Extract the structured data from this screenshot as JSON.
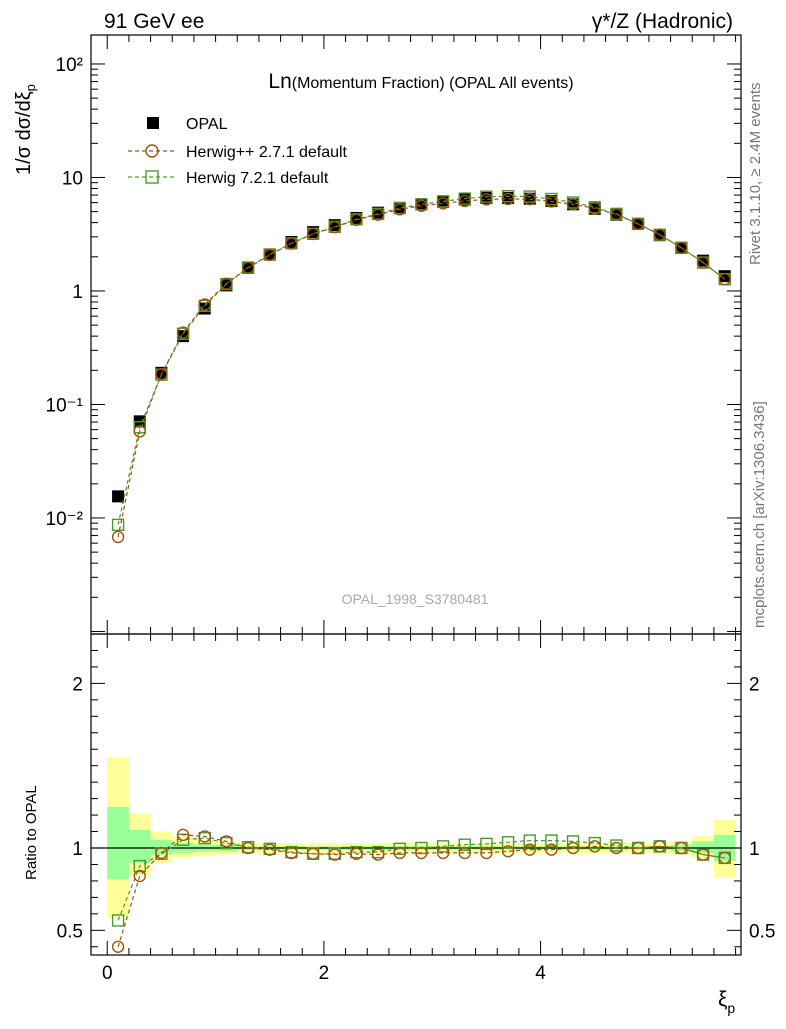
{
  "header": {
    "left": "91 GeV ee",
    "right": "γ*/Z (Hadronic)"
  },
  "side_labels": {
    "rivet": "Rivet 3.1.10, ≥ 2.4M events",
    "mcplots": "mcplots.cern.ch [arXiv:1306.3436]"
  },
  "watermark": "OPAL_1998_S3780481",
  "chart_data": [
    {
      "type": "scatter",
      "title_main": "Ln",
      "title_rest": "(Momentum Fraction) (OPAL All events)",
      "ylabel": "1/σ dσ/dξp",
      "xlabel": "ξp",
      "yscale": "log",
      "ylim": [
        0.00095,
        180
      ],
      "xlim": [
        -0.15,
        5.85
      ],
      "ytick_labels": [
        "10⁻²",
        "10⁻¹",
        "1",
        "10",
        "10²"
      ],
      "legend": {
        "placement": "top-left",
        "entries": [
          "OPAL",
          "Herwig++ 2.7.1 default",
          "Herwig 7.2.1 default"
        ]
      },
      "x": [
        0.1,
        0.3,
        0.5,
        0.7,
        0.9,
        1.1,
        1.3,
        1.5,
        1.7,
        1.9,
        2.1,
        2.3,
        2.5,
        2.7,
        2.9,
        3.1,
        3.3,
        3.5,
        3.7,
        3.9,
        4.1,
        4.3,
        4.5,
        4.7,
        4.9,
        5.1,
        5.3,
        5.5,
        5.7
      ],
      "series": [
        {
          "name": "OPAL",
          "color": "#000000",
          "marker": "square-filled",
          "values": [
            0.0155,
            0.071,
            0.19,
            0.4,
            0.7,
            1.12,
            1.6,
            2.1,
            2.7,
            3.3,
            3.8,
            4.4,
            4.9,
            5.4,
            5.8,
            6.1,
            6.4,
            6.6,
            6.6,
            6.5,
            6.2,
            5.8,
            5.3,
            4.7,
            3.9,
            3.1,
            2.4,
            1.85,
            1.35
          ]
        },
        {
          "name": "Herwig++ 2.7.1 default",
          "color": "#a0520f",
          "marker": "circle-open",
          "values": [
            0.0068,
            0.058,
            0.185,
            0.43,
            0.76,
            1.16,
            1.6,
            2.08,
            2.62,
            3.18,
            3.65,
            4.24,
            4.7,
            5.24,
            5.63,
            5.92,
            6.21,
            6.41,
            6.47,
            6.44,
            6.15,
            5.8,
            5.35,
            4.72,
            3.9,
            3.13,
            2.4,
            1.78,
            1.27
          ]
        },
        {
          "name": "Herwig 7.2.1 default",
          "color": "#4a9a2a",
          "marker": "square-open",
          "values": [
            0.0087,
            0.063,
            0.183,
            0.42,
            0.74,
            1.15,
            1.61,
            2.09,
            2.63,
            3.19,
            3.67,
            4.28,
            4.78,
            5.37,
            5.8,
            6.16,
            6.52,
            6.77,
            6.84,
            6.79,
            6.46,
            6.02,
            5.46,
            4.78,
            3.9,
            3.13,
            2.4,
            1.78,
            1.27
          ]
        }
      ]
    },
    {
      "type": "scatter",
      "ylabel": "Ratio to OPAL",
      "xlabel": "ξp",
      "ylim": [
        0.35,
        2.3
      ],
      "xlim": [
        -0.15,
        5.85
      ],
      "xtick_labels": [
        "0",
        "2",
        "4"
      ],
      "xticks": [
        0,
        2,
        4
      ],
      "ytick_labels": [
        "0.5",
        "1",
        "2"
      ],
      "yticks": [
        0.5,
        1,
        2
      ],
      "reference_line": 1,
      "band_edges": [
        0.0,
        0.2,
        0.4,
        0.6,
        0.8,
        1.0,
        1.2,
        1.4,
        1.6,
        1.8,
        2.0,
        2.2,
        2.4,
        2.6,
        2.8,
        3.0,
        3.2,
        3.4,
        3.6,
        3.8,
        4.0,
        4.2,
        4.4,
        4.6,
        4.8,
        5.0,
        5.2,
        5.4,
        5.6,
        5.8
      ],
      "band_yellow": [
        [
          0.58,
          1.55
        ],
        [
          0.83,
          1.21
        ],
        [
          0.91,
          1.1
        ],
        [
          0.94,
          1.07
        ],
        [
          0.95,
          1.05
        ],
        [
          0.96,
          1.04
        ],
        [
          0.97,
          1.03
        ],
        [
          0.97,
          1.03
        ],
        [
          0.97,
          1.03
        ],
        [
          0.97,
          1.03
        ],
        [
          0.97,
          1.03
        ],
        [
          0.97,
          1.03
        ],
        [
          0.97,
          1.03
        ],
        [
          0.97,
          1.03
        ],
        [
          0.97,
          1.03
        ],
        [
          0.97,
          1.03
        ],
        [
          0.97,
          1.03
        ],
        [
          0.97,
          1.03
        ],
        [
          0.97,
          1.03
        ],
        [
          0.97,
          1.03
        ],
        [
          0.97,
          1.03
        ],
        [
          0.97,
          1.03
        ],
        [
          0.97,
          1.03
        ],
        [
          0.97,
          1.03
        ],
        [
          0.97,
          1.03
        ],
        [
          0.97,
          1.03
        ],
        [
          0.96,
          1.04
        ],
        [
          0.94,
          1.07
        ],
        [
          0.82,
          1.17
        ]
      ],
      "band_green": [
        [
          0.81,
          1.25
        ],
        [
          0.91,
          1.11
        ],
        [
          0.96,
          1.05
        ],
        [
          0.97,
          1.03
        ],
        [
          0.98,
          1.02
        ],
        [
          0.98,
          1.02
        ],
        [
          0.99,
          1.01
        ],
        [
          0.99,
          1.01
        ],
        [
          0.99,
          1.01
        ],
        [
          0.99,
          1.01
        ],
        [
          0.99,
          1.01
        ],
        [
          0.99,
          1.01
        ],
        [
          0.99,
          1.01
        ],
        [
          0.99,
          1.01
        ],
        [
          0.99,
          1.01
        ],
        [
          0.99,
          1.01
        ],
        [
          0.99,
          1.01
        ],
        [
          0.99,
          1.01
        ],
        [
          0.99,
          1.01
        ],
        [
          0.99,
          1.01
        ],
        [
          0.99,
          1.01
        ],
        [
          0.99,
          1.01
        ],
        [
          0.99,
          1.01
        ],
        [
          0.99,
          1.01
        ],
        [
          0.99,
          1.01
        ],
        [
          0.99,
          1.01
        ],
        [
          0.98,
          1.02
        ],
        [
          0.97,
          1.04
        ],
        [
          0.92,
          1.08
        ]
      ],
      "series": [
        {
          "name": "Herwig++ 2.7.1 default",
          "color": "#a0520f",
          "marker": "circle-open",
          "values": [
            0.4,
            0.83,
            0.97,
            1.08,
            1.07,
            1.04,
            1.0,
            0.99,
            0.97,
            0.965,
            0.96,
            0.965,
            0.96,
            0.97,
            0.97,
            0.97,
            0.97,
            0.97,
            0.98,
            0.99,
            0.99,
            1.0,
            1.01,
            1.0,
            1.0,
            1.01,
            1.0,
            0.96,
            0.94
          ]
        },
        {
          "name": "Herwig 7.2.1 default",
          "color": "#4a9a2a",
          "marker": "square-open",
          "values": [
            0.56,
            0.89,
            0.965,
            1.05,
            1.06,
            1.03,
            1.005,
            0.995,
            0.975,
            0.965,
            0.965,
            0.975,
            0.975,
            0.995,
            1.0,
            1.01,
            1.02,
            1.025,
            1.035,
            1.045,
            1.045,
            1.04,
            1.03,
            1.015,
            1.0,
            1.01,
            1.0,
            0.96,
            0.94
          ]
        }
      ]
    }
  ]
}
